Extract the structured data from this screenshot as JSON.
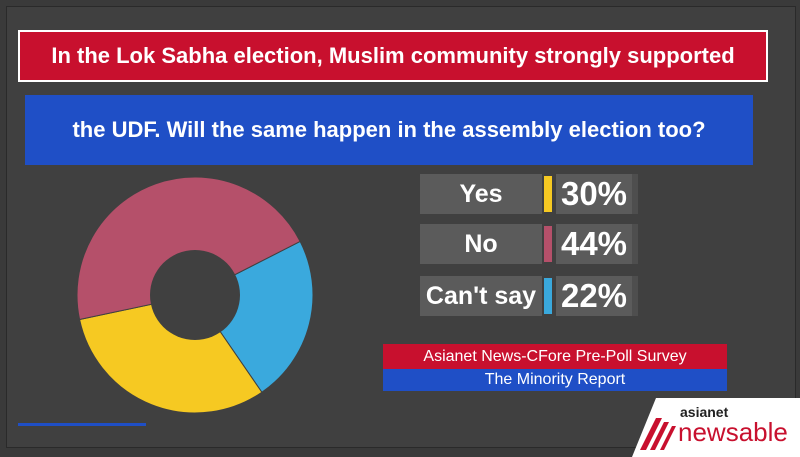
{
  "title": {
    "line1": "In the Lok Sabha election, Muslim community strongly supported",
    "line2": "the UDF. Will the same happen in the assembly election too?"
  },
  "chart_data": {
    "type": "pie",
    "donut": true,
    "categories": [
      "Yes",
      "No",
      "Can't say"
    ],
    "values": [
      30,
      44,
      22
    ],
    "value_labels": [
      "30%",
      "44%",
      "22%"
    ],
    "colors": [
      "#f6c922",
      "#b5506a",
      "#3aa9dd"
    ]
  },
  "legend": [
    {
      "label": "Yes",
      "value": "30%",
      "color": "#f6c922"
    },
    {
      "label": "No",
      "value": "44%",
      "color": "#b5506a"
    },
    {
      "label": "Can't say",
      "value": "22%",
      "color": "#3aa9dd"
    }
  ],
  "source": {
    "line1": "Asianet News-CFore Pre-Poll Survey",
    "line2": "The Minority Report"
  },
  "logo": {
    "top": "asianet",
    "bottom": "newsable"
  }
}
